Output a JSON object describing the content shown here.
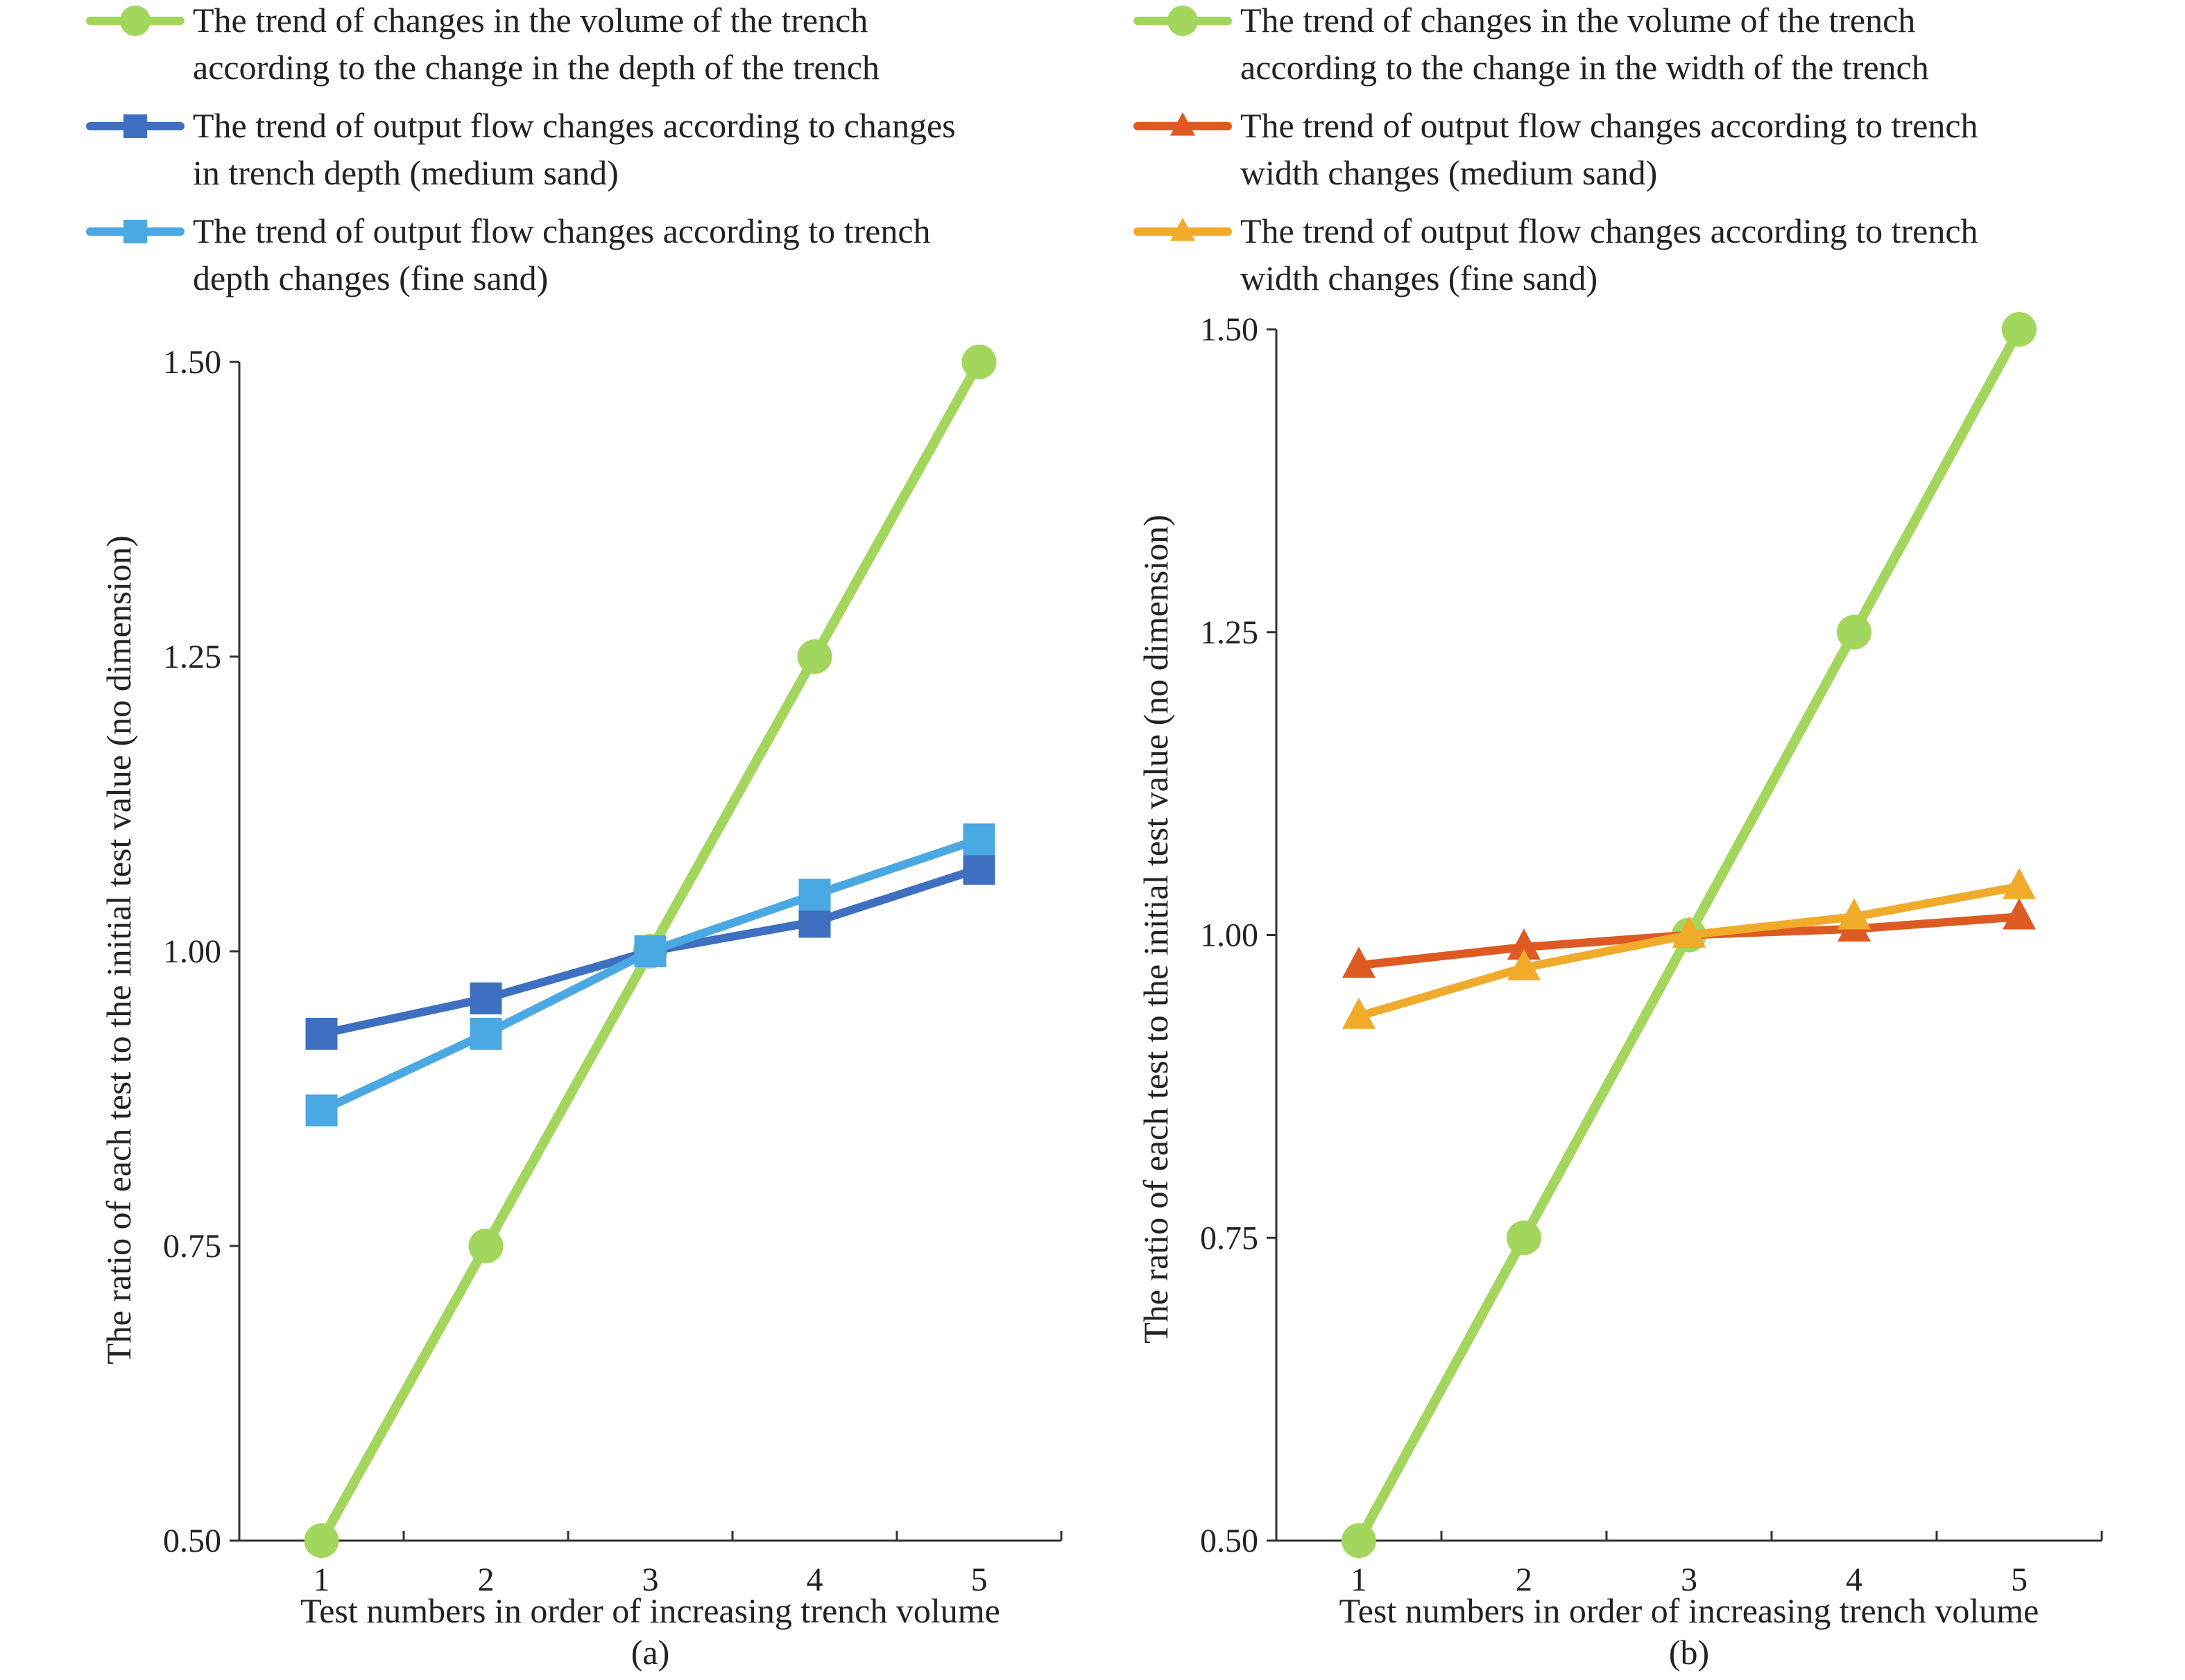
{
  "chart_data": [
    {
      "type": "line",
      "panel_label": "(a)",
      "xlabel": "Test numbers in order of increasing trench volume",
      "ylabel": "The ratio of each test to the initial test value (no dimension)",
      "x": [
        1,
        2,
        3,
        4,
        5
      ],
      "xlim": [
        0.5,
        5.5
      ],
      "ylim": [
        0.5,
        1.5
      ],
      "yticks": [
        "0.50",
        "0.75",
        "1.00",
        "1.25",
        "1.50"
      ],
      "xticks": [
        "1",
        "2",
        "3",
        "4",
        "5"
      ],
      "legend_placement": "top",
      "series": [
        {
          "name_line1": "The trend of changes in the volume of the trench",
          "name_line2": "according to the change in the depth of the trench",
          "values": [
            0.5,
            0.75,
            1.0,
            1.25,
            1.5
          ],
          "color": "#a3d65c",
          "marker": "circle"
        },
        {
          "name_line1": "The trend of output flow changes according to changes",
          "name_line2": "in trench depth (medium sand)",
          "values": [
            0.93,
            0.96,
            1.0,
            1.025,
            1.07
          ],
          "color": "#3f6fc0",
          "marker": "square"
        },
        {
          "name_line1": "The trend of output flow changes according to trench",
          "name_line2": "depth changes (fine sand)",
          "values": [
            0.865,
            0.93,
            1.0,
            1.048,
            1.095
          ],
          "color": "#4aa8e2",
          "marker": "square"
        }
      ]
    },
    {
      "type": "line",
      "panel_label": "(b)",
      "xlabel": "Test numbers in order of increasing trench volume",
      "ylabel": "The ratio of each test to the initial test value (no dimension)",
      "x": [
        1,
        2,
        3,
        4,
        5
      ],
      "xlim": [
        0.5,
        5.5
      ],
      "ylim": [
        0.5,
        1.5
      ],
      "yticks": [
        "0.50",
        "0.75",
        "1.00",
        "1.25",
        "1.50"
      ],
      "xticks": [
        "1",
        "2",
        "3",
        "4",
        "5"
      ],
      "legend_placement": "top",
      "series": [
        {
          "name_line1": "The trend of changes in the volume of the trench",
          "name_line2": "according to the change in the width of the trench",
          "values": [
            0.5,
            0.75,
            1.0,
            1.25,
            1.5
          ],
          "color": "#a3d65c",
          "marker": "circle"
        },
        {
          "name_line1": "The trend of output flow changes according to trench",
          "name_line2": "width changes (medium sand)",
          "values": [
            0.975,
            0.99,
            1.0,
            1.005,
            1.015
          ],
          "color": "#dd5a22",
          "marker": "triangle"
        },
        {
          "name_line1": "The trend of output flow changes according to trench",
          "name_line2": "width changes (fine sand)",
          "values": [
            0.933,
            0.973,
            1.0,
            1.015,
            1.04
          ],
          "color": "#f1ab2a",
          "marker": "triangle"
        }
      ]
    }
  ]
}
